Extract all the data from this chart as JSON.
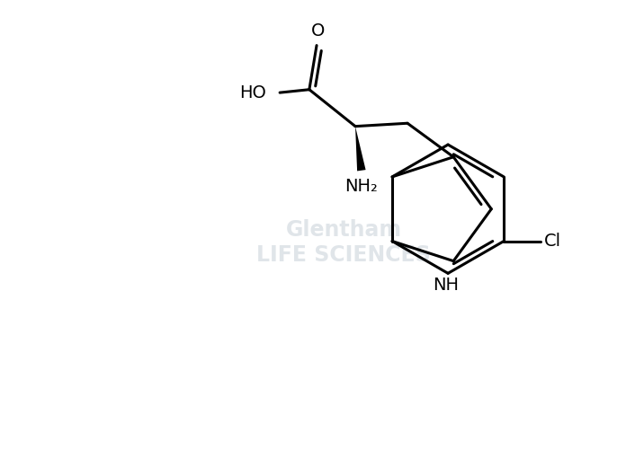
{
  "background_color": "#ffffff",
  "line_color": "#000000",
  "line_width": 2.2,
  "font_size_labels": 14,
  "watermark_color": "#c8d0d8",
  "figsize": [
    6.96,
    5.2
  ],
  "dpi": 100,
  "xlim": [
    0,
    10
  ],
  "ylim": [
    0,
    7.5
  ]
}
